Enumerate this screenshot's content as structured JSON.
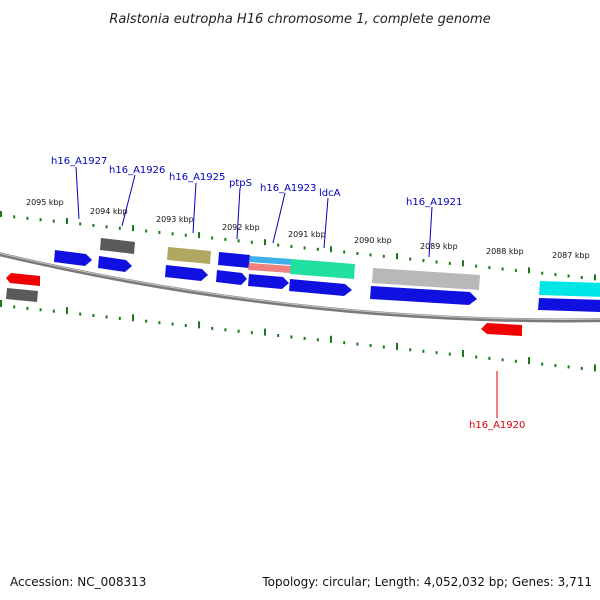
{
  "title": "Ralstonia eutropha H16 chromosome 1, complete genome",
  "accession_text": "Accession: NC_008313",
  "summary_text": "Topology: circular; Length: 4,052,032 bp; Genes: 3,711",
  "scale": {
    "labels": [
      "2095 kbp",
      "2094 kbp",
      "2093 kbp",
      "2092 kbp",
      "2091 kbp",
      "2090 kbp",
      "2089 kbp",
      "2088 kbp",
      "2087 kbp"
    ]
  },
  "gene_labels": [
    {
      "text": "h16_A1927",
      "color": "#0000c0"
    },
    {
      "text": "h16_A1926",
      "color": "#0000c0"
    },
    {
      "text": "h16_A1925",
      "color": "#0000c0"
    },
    {
      "text": "ptpS",
      "color": "#0000c0"
    },
    {
      "text": "h16_A1923",
      "color": "#0000c0"
    },
    {
      "text": "ldcA",
      "color": "#0000c0"
    },
    {
      "text": "h16_A1921",
      "color": "#0000c0"
    },
    {
      "text": "h16_A1920",
      "color": "#e00000"
    }
  ],
  "colors": {
    "backbone": "#808080",
    "tick": "#1a7a1a",
    "blue": "#1010e0",
    "red": "#f00000",
    "gray_dark": "#5a5a5a",
    "gray_light": "#b8b8b8",
    "olive": "#b0a860",
    "cyan": "#00e6e6",
    "teal_green": "#20e0a0",
    "pink": "#f08080",
    "sky": "#40b0e8"
  }
}
